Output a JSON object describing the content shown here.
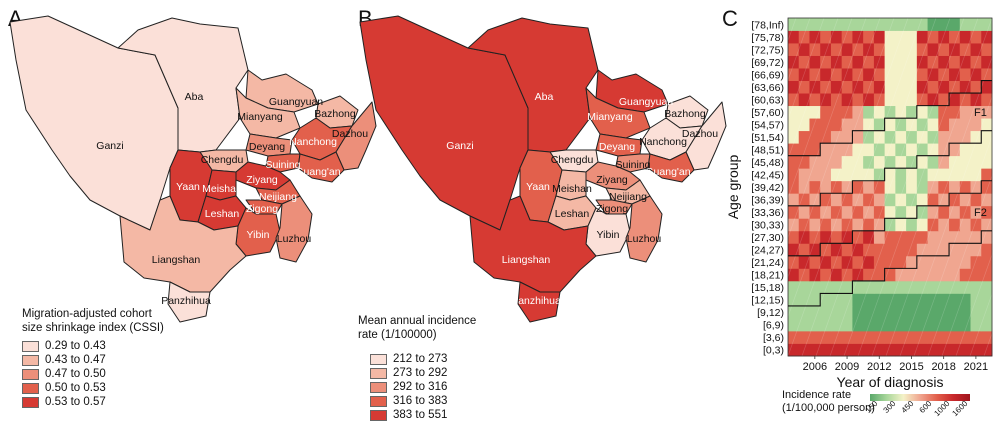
{
  "panels": {
    "a": {
      "letter": "A",
      "legend_title_lines": [
        "Migration-adjusted cohort",
        "size shrinkage index (CSSI)"
      ],
      "legend": [
        {
          "label": "0.29 to 0.43",
          "color": "#fbe0d8"
        },
        {
          "label": "0.43 to 0.47",
          "color": "#f4b8a5"
        },
        {
          "label": "0.47 to 0.50",
          "color": "#ec8f7a"
        },
        {
          "label": "0.50 to 0.53",
          "color": "#e2604c"
        },
        {
          "label": "0.53 to 0.57",
          "color": "#d63a33"
        }
      ],
      "regions": [
        {
          "name": "Ganzi",
          "value_class": 0
        },
        {
          "name": "Aba",
          "value_class": 0
        },
        {
          "name": "Guangyuan",
          "value_class": 1
        },
        {
          "name": "Bazhong",
          "value_class": 1
        },
        {
          "name": "Mianyang",
          "value_class": 1
        },
        {
          "name": "Nanchong",
          "value_class": 3
        },
        {
          "name": "Dazhou",
          "value_class": 2
        },
        {
          "name": "Deyang",
          "value_class": 2
        },
        {
          "name": "Chengdu",
          "value_class": 1
        },
        {
          "name": "Suining",
          "value_class": 3
        },
        {
          "name": "Guang'an",
          "value_class": 3
        },
        {
          "name": "Ziyang",
          "value_class": 4
        },
        {
          "name": "Yaan",
          "value_class": 4
        },
        {
          "name": "Meishan",
          "value_class": 4
        },
        {
          "name": "Leshan",
          "value_class": 4
        },
        {
          "name": "Neijiang",
          "value_class": 3
        },
        {
          "name": "Zigong",
          "value_class": 3
        },
        {
          "name": "Yibin",
          "value_class": 3
        },
        {
          "name": "Luzhou",
          "value_class": 2
        },
        {
          "name": "Liangshan",
          "value_class": 1
        },
        {
          "name": "Panzhihua",
          "value_class": 0
        }
      ]
    },
    "b": {
      "letter": "B",
      "legend_title_lines": [
        "Mean annual  incidence",
        "rate (1/100000)"
      ],
      "legend": [
        {
          "label": "212 to 273",
          "color": "#fbe0d8"
        },
        {
          "label": "273 to 292",
          "color": "#f4b8a5"
        },
        {
          "label": "292 to 316",
          "color": "#ec8f7a"
        },
        {
          "label": "316 to 383",
          "color": "#e2604c"
        },
        {
          "label": "383 to 551",
          "color": "#d63a33"
        }
      ],
      "regions": [
        {
          "name": "Ganzi",
          "value_class": 4
        },
        {
          "name": "Aba",
          "value_class": 4
        },
        {
          "name": "Guangyuan",
          "value_class": 4
        },
        {
          "name": "Bazhong",
          "value_class": 0
        },
        {
          "name": "Mianyang",
          "value_class": 3
        },
        {
          "name": "Nanchong",
          "value_class": 0
        },
        {
          "name": "Dazhou",
          "value_class": 0
        },
        {
          "name": "Deyang",
          "value_class": 3
        },
        {
          "name": "Chengdu",
          "value_class": 0
        },
        {
          "name": "Suining",
          "value_class": 2
        },
        {
          "name": "Guang'an",
          "value_class": 3
        },
        {
          "name": "Ziyang",
          "value_class": 2
        },
        {
          "name": "Yaan",
          "value_class": 3
        },
        {
          "name": "Meishan",
          "value_class": 1
        },
        {
          "name": "Leshan",
          "value_class": 1
        },
        {
          "name": "Neijiang",
          "value_class": 1
        },
        {
          "name": "Zigong",
          "value_class": 2
        },
        {
          "name": "Yibin",
          "value_class": 0
        },
        {
          "name": "Luzhou",
          "value_class": 2
        },
        {
          "name": "Liangshan",
          "value_class": 4
        },
        {
          "name": "Panzhihua",
          "value_class": 4
        }
      ]
    },
    "c": {
      "letter": "C",
      "ylabel": "Age group",
      "xlabel": "Year of diagnosis",
      "x_ticks": [
        "2006",
        "2009",
        "2012",
        "2015",
        "2018",
        "2021"
      ],
      "age_groups": [
        "[0,3)",
        "[3,6)",
        "[6,9)",
        "[9,12)",
        "[12,15)",
        "[15,18)",
        "[18,21)",
        "[21,24)",
        "[24,27)",
        "[27,30)",
        "[30,33)",
        "[33,36)",
        "[36,39)",
        "[39,42)",
        "[42,45)",
        "[45,48)",
        "[48,51)",
        "[51,54)",
        "[54,57)",
        "[57,60)",
        "[60,63)",
        "[63,66)",
        "[66,69)",
        "[69,72)",
        "[72,75)",
        "[75,78)",
        "[78,Inf)"
      ],
      "cohort_labels": [
        "F1",
        "F2"
      ],
      "colorbar_title_lines": [
        "Incidence rate",
        "(1/100,000 person)"
      ],
      "colorbar_ticks": [
        "150",
        "300",
        "450",
        "600",
        "1000",
        "1600"
      ],
      "colorbar_colors": [
        "#5aa86a",
        "#a8d69a",
        "#f4f2c8",
        "#f0a690",
        "#e2604c",
        "#c8282b",
        "#a0151d"
      ]
    }
  },
  "chart_data": {
    "type": "heatmap",
    "title": "",
    "xlabel": "Year of diagnosis",
    "ylabel": "Age group",
    "x_ticks": [
      "2006",
      "2009",
      "2012",
      "2015",
      "2018",
      "2021"
    ],
    "rows": [
      "[0,3)",
      "[3,6)",
      "[6,9)",
      "[9,12)",
      "[12,15)",
      "[15,18)",
      "[18,21)",
      "[21,24)",
      "[24,27)",
      "[27,30)",
      "[30,33)",
      "[33,36)",
      "[36,39)",
      "[39,42)",
      "[42,45)",
      "[45,48)",
      "[48,51)",
      "[51,54)",
      "[54,57)",
      "[57,60)",
      "[60,63)",
      "[63,66)",
      "[66,69)",
      "[69,72)",
      "[72,75)",
      "[75,78)",
      "[78,Inf)"
    ],
    "colorbar": {
      "title": "Incidence rate (1/100,000 person)",
      "ticks": [
        150,
        300,
        450,
        600,
        1000,
        1600
      ]
    }
  }
}
